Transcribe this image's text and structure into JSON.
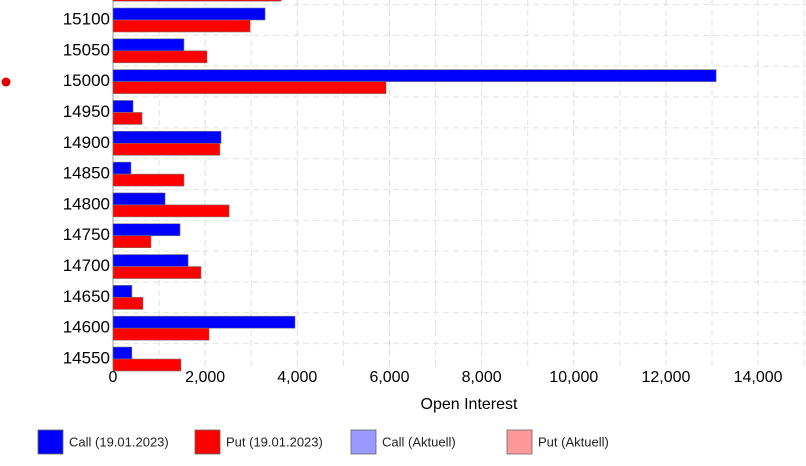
{
  "chart_data": {
    "type": "bar",
    "orientation": "horizontal",
    "x_axis_label": "Open Interest",
    "categories": [
      null,
      "15100",
      "15050",
      "15000",
      "14950",
      "14900",
      "14850",
      "14800",
      "14750",
      "14700",
      "14650",
      "14600",
      "14550"
    ],
    "series": [
      {
        "name": "Call (19.01.2023)",
        "color": "#0000ff",
        "values": [
          null,
          3300,
          1540,
          13090,
          435,
          2345,
          390,
          1130,
          1455,
          1630,
          410,
          3950,
          410
        ]
      },
      {
        "name": "Put (19.01.2023)",
        "color": "#ff0000",
        "values": [
          3650,
          2975,
          2040,
          5925,
          630,
          2320,
          1540,
          2520,
          825,
          1910,
          650,
          2085,
          1475
        ]
      },
      {
        "name": "Call (Aktuell)",
        "color": "#9999ff",
        "values": [
          null,
          null,
          null,
          null,
          null,
          null,
          null,
          null,
          null,
          null,
          null,
          null,
          null
        ]
      },
      {
        "name": "Put (Aktuell)",
        "color": "#ff9999",
        "values": [
          null,
          null,
          null,
          null,
          null,
          null,
          null,
          null,
          null,
          null,
          null,
          null,
          null
        ]
      }
    ],
    "xlim": [
      0,
      15040
    ],
    "xticks": [
      0,
      {
        "value": 2000,
        "label": "2,000"
      },
      {
        "value": 4000,
        "label": "4,000"
      },
      {
        "value": 6000,
        "label": "6,000"
      },
      {
        "value": 8000,
        "label": "8,000"
      },
      {
        "value": 10000,
        "label": "10,000"
      },
      {
        "value": 12000,
        "label": "12,000"
      },
      {
        "value": 14000,
        "label": "14,000"
      }
    ],
    "x_minor_ticks": [
      1000,
      3000,
      5000,
      7000,
      9000,
      11000,
      13000,
      15000
    ],
    "grid": true,
    "legend": "bottom"
  }
}
